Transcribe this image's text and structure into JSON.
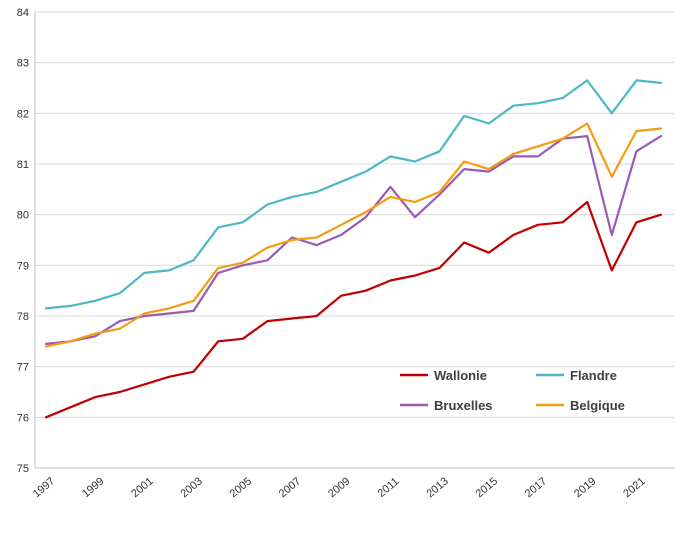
{
  "chart_data": {
    "type": "line",
    "title": "",
    "xlabel": "",
    "ylabel": "",
    "ylim": [
      75,
      84
    ],
    "yticks": [
      75,
      76,
      77,
      78,
      79,
      80,
      81,
      82,
      83,
      84
    ],
    "xlim": [
      1997,
      2022
    ],
    "xticks": [
      1997,
      1999,
      2001,
      2003,
      2005,
      2007,
      2009,
      2011,
      2013,
      2015,
      2017,
      2019,
      2021
    ],
    "grid": "horizontal",
    "legend": "bottom-right inside plot, 2 columns",
    "x": [
      1997,
      1998,
      1999,
      2000,
      2001,
      2002,
      2003,
      2004,
      2005,
      2006,
      2007,
      2008,
      2009,
      2010,
      2011,
      2012,
      2013,
      2014,
      2015,
      2016,
      2017,
      2018,
      2019,
      2020,
      2021,
      2022
    ],
    "series": [
      {
        "name": "Wallonie",
        "color": "#c00000",
        "values": [
          76.0,
          76.2,
          76.4,
          76.5,
          76.65,
          76.8,
          76.9,
          77.5,
          77.55,
          77.9,
          77.95,
          78.0,
          78.4,
          78.5,
          78.7,
          78.8,
          78.95,
          79.45,
          79.25,
          79.6,
          79.8,
          79.85,
          80.25,
          78.9,
          79.85,
          80.0
        ]
      },
      {
        "name": "Flandre",
        "color": "#4bb8c8",
        "values": [
          78.15,
          78.2,
          78.3,
          78.45,
          78.85,
          78.9,
          79.1,
          79.75,
          79.85,
          80.2,
          80.35,
          80.45,
          80.65,
          80.85,
          81.15,
          81.05,
          81.25,
          81.95,
          81.8,
          82.15,
          82.2,
          82.3,
          82.65,
          82.0,
          82.65,
          82.6
        ]
      },
      {
        "name": "Bruxelles",
        "color": "#9b59b6",
        "values": [
          77.45,
          77.5,
          77.6,
          77.9,
          78.0,
          78.05,
          78.1,
          78.85,
          79.0,
          79.1,
          79.55,
          79.4,
          79.6,
          79.95,
          80.55,
          79.95,
          80.4,
          80.9,
          80.85,
          81.15,
          81.15,
          81.5,
          81.55,
          79.6,
          81.25,
          81.55
        ]
      },
      {
        "name": "Belgique",
        "color": "#f39c12",
        "values": [
          77.4,
          77.5,
          77.65,
          77.75,
          78.05,
          78.15,
          78.3,
          78.95,
          79.05,
          79.35,
          79.5,
          79.55,
          79.8,
          80.05,
          80.35,
          80.25,
          80.45,
          81.05,
          80.9,
          81.2,
          81.35,
          81.5,
          81.8,
          80.75,
          81.65,
          81.7
        ]
      }
    ]
  }
}
